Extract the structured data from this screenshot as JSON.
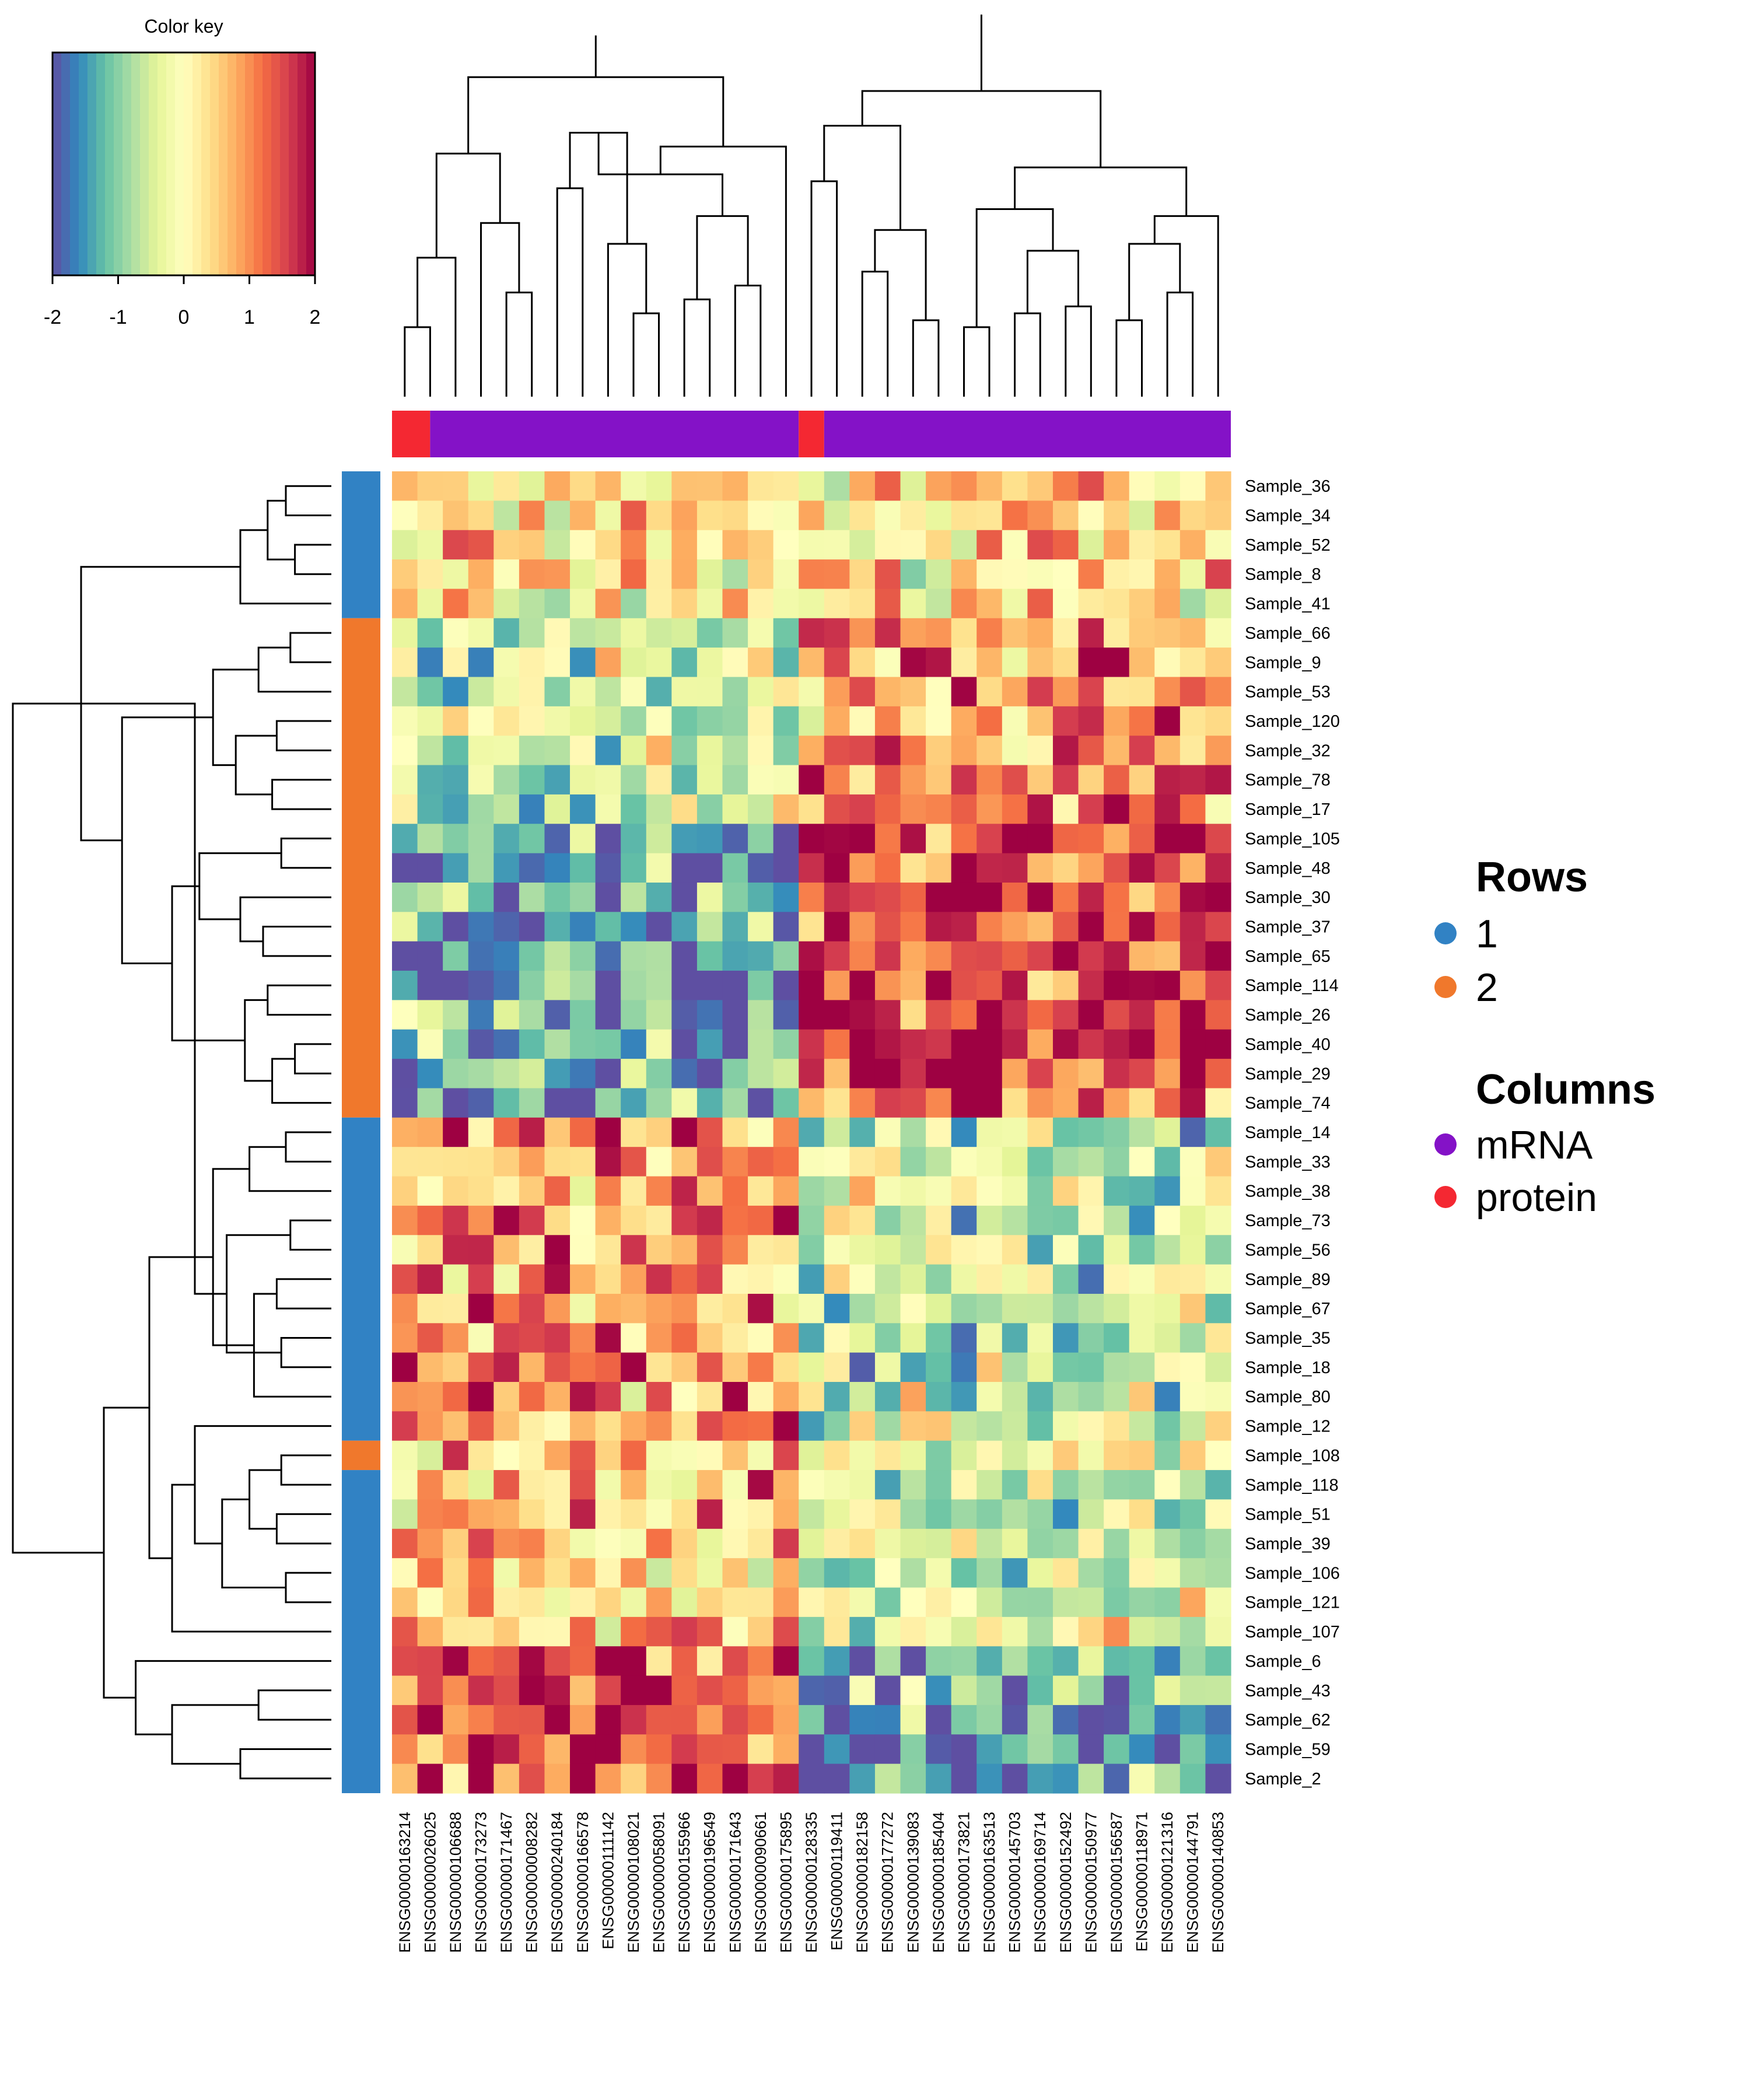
{
  "color_key": {
    "title": "Color key",
    "ticks": [
      "-2",
      "-1",
      "0",
      "1",
      "2"
    ],
    "range": [
      -2,
      2
    ],
    "palette": [
      "#5E4FA2",
      "#3288BD",
      "#66C2A5",
      "#ABDDA4",
      "#E6F598",
      "#FFFFBF",
      "#FEE08B",
      "#FDAE61",
      "#F46D43",
      "#D53E4F",
      "#9E0142"
    ]
  },
  "legend": {
    "rows_title": "Rows",
    "rows_items": [
      {
        "label": "1",
        "color": "#3182c4"
      },
      {
        "label": "2",
        "color": "#f0782c"
      }
    ],
    "columns_title": "Columns",
    "columns_items": [
      {
        "label": "mRNA",
        "color": "#8412c7"
      },
      {
        "label": "protein",
        "color": "#f42832"
      }
    ]
  },
  "chart_data": {
    "type": "heatmap",
    "value_range": [
      -2,
      2
    ],
    "col_labels": [
      "ENSG00000163214",
      "ENSG00000026025",
      "ENSG00000106688",
      "ENSG00000173273",
      "ENSG00000171467",
      "ENSG00000008282",
      "ENSG00000240184",
      "ENSG00000166578",
      "ENSG00000111142",
      "ENSG00000108021",
      "ENSG00000058091",
      "ENSG00000155966",
      "ENSG00000196549",
      "ENSG00000171643",
      "ENSG00000090661",
      "ENSG00000175895",
      "ENSG00000128335",
      "ENSG00000119411",
      "ENSG00000182158",
      "ENSG00000177272",
      "ENSG00000139083",
      "ENSG00000185404",
      "ENSG00000173821",
      "ENSG00000163513",
      "ENSG00000145703",
      "ENSG00000169714",
      "ENSG00000152492",
      "ENSG00000150977",
      "ENSG00000156587",
      "ENSG00000118971",
      "ENSG00000121316",
      "ENSG00000144791",
      "ENSG00000140853"
    ],
    "col_annotation_colors": [
      "#f42832",
      "#8412c7"
    ],
    "col_annotation_runs": [
      [
        0,
        1.5,
        0
      ],
      [
        1.5,
        16,
        1
      ],
      [
        16,
        17,
        0
      ],
      [
        17,
        33,
        1
      ]
    ],
    "row_labels": [
      "Sample_36",
      "Sample_34",
      "Sample_52",
      "Sample_8",
      "Sample_41",
      "Sample_66",
      "Sample_9",
      "Sample_53",
      "Sample_120",
      "Sample_32",
      "Sample_78",
      "Sample_17",
      "Sample_105",
      "Sample_48",
      "Sample_30",
      "Sample_37",
      "Sample_65",
      "Sample_114",
      "Sample_26",
      "Sample_40",
      "Sample_29",
      "Sample_74",
      "Sample_14",
      "Sample_33",
      "Sample_38",
      "Sample_73",
      "Sample_56",
      "Sample_89",
      "Sample_67",
      "Sample_35",
      "Sample_18",
      "Sample_80",
      "Sample_12",
      "Sample_108",
      "Sample_118",
      "Sample_51",
      "Sample_39",
      "Sample_106",
      "Sample_121",
      "Sample_107",
      "Sample_6",
      "Sample_43",
      "Sample_62",
      "Sample_59",
      "Sample_2"
    ],
    "row_annotation_colors": [
      "#3182c4",
      "#f0782c"
    ],
    "row_annotation_runs": [
      [
        0,
        5,
        0
      ],
      [
        5,
        22,
        1
      ],
      [
        22,
        33,
        0
      ],
      [
        33,
        34,
        1
      ],
      [
        34,
        45,
        0
      ]
    ],
    "row_cluster_means": [
      {
        "rows": [
          0,
          5
        ],
        "left": 0.3,
        "right": 0.3
      },
      {
        "rows": [
          5,
          12
        ],
        "left": -0.5,
        "right": 0.9
      },
      {
        "rows": [
          12,
          22
        ],
        "left": -1.4,
        "right": 1.5
      },
      {
        "rows": [
          22,
          33
        ],
        "left": 0.9,
        "right": -0.5
      },
      {
        "rows": [
          33,
          40
        ],
        "left": 0.6,
        "right": -0.4
      },
      {
        "rows": [
          40,
          45
        ],
        "left": 1.5,
        "right": -1.3
      }
    ],
    "col_dendrogram": [
      [
        0,
        1,
        1.0
      ],
      [
        -1,
        2,
        2.0
      ],
      [
        4,
        5,
        1.5
      ],
      [
        3,
        -3,
        2.5
      ],
      [
        -2,
        -4,
        3.5
      ],
      [
        9,
        10,
        1.2
      ],
      [
        8,
        -6,
        2.2
      ],
      [
        6,
        7,
        3.0
      ],
      [
        -8,
        -7,
        3.8
      ],
      [
        11,
        12,
        1.4
      ],
      [
        13,
        14,
        1.6
      ],
      [
        -10,
        -11,
        2.6
      ],
      [
        -9,
        -12,
        3.2
      ],
      [
        15,
        -13,
        3.6
      ],
      [
        -5,
        -14,
        4.6
      ],
      [
        -15,
        -16,
        5.2
      ],
      [
        18,
        19,
        1.8
      ],
      [
        20,
        21,
        1.1
      ],
      [
        -17,
        -18,
        2.4
      ],
      [
        16,
        17,
        3.1
      ],
      [
        -20,
        -19,
        3.9
      ],
      [
        22,
        23,
        1.0
      ],
      [
        24,
        25,
        1.2
      ],
      [
        26,
        27,
        1.3
      ],
      [
        -23,
        -24,
        2.1
      ],
      [
        -22,
        -25,
        2.7
      ],
      [
        28,
        29,
        1.1
      ],
      [
        30,
        31,
        1.5
      ],
      [
        -27,
        -28,
        2.2
      ],
      [
        -29,
        32,
        2.6
      ],
      [
        -26,
        -30,
        3.3
      ],
      [
        -31,
        -21,
        4.4
      ],
      [
        -32,
        -33,
        5.5
      ]
    ],
    "row_dendrogram": [
      [
        0,
        1,
        1.0
      ],
      [
        2,
        3,
        0.8
      ],
      [
        -1,
        -2,
        1.4
      ],
      [
        -3,
        4,
        2.0
      ],
      [
        5,
        6,
        0.9
      ],
      [
        -5,
        7,
        1.6
      ],
      [
        8,
        9,
        1.2
      ],
      [
        10,
        11,
        1.3
      ],
      [
        -7,
        -8,
        2.1
      ],
      [
        -6,
        -9,
        2.6
      ],
      [
        12,
        13,
        1.1
      ],
      [
        15,
        16,
        1.5
      ],
      [
        14,
        -12,
        2.0
      ],
      [
        -11,
        -13,
        2.9
      ],
      [
        17,
        18,
        1.4
      ],
      [
        19,
        20,
        0.8
      ],
      [
        -16,
        21,
        1.3
      ],
      [
        -15,
        -17,
        1.9
      ],
      [
        -14,
        -18,
        3.5
      ],
      [
        -10,
        -19,
        4.6
      ],
      [
        -4,
        -20,
        5.5
      ],
      [
        22,
        23,
        1.0
      ],
      [
        25,
        26,
        0.9
      ],
      [
        27,
        28,
        1.2
      ],
      [
        29,
        30,
        1.1
      ],
      [
        -24,
        31,
        1.7
      ],
      [
        -22,
        24,
        1.8
      ],
      [
        -23,
        -25,
        2.3
      ],
      [
        -27,
        -26,
        2.6
      ],
      [
        -28,
        -21,
        3.0
      ],
      [
        33,
        34,
        1.1
      ],
      [
        35,
        36,
        1.2
      ],
      [
        37,
        38,
        1.0
      ],
      [
        -31,
        -32,
        1.8
      ],
      [
        -33,
        -34,
        2.4
      ],
      [
        32,
        -35,
        3.0
      ],
      [
        -36,
        39,
        3.5
      ],
      [
        -29,
        -37,
        4.0
      ],
      [
        41,
        42,
        1.6
      ],
      [
        43,
        44,
        2.0
      ],
      [
        -39,
        -40,
        3.5
      ],
      [
        40,
        -41,
        4.3
      ],
      [
        -38,
        -42,
        5.0
      ],
      [
        -21,
        -43,
        7.0
      ]
    ],
    "col_dendrogram_max": 5.5,
    "row_dendrogram_max": 7.0
  }
}
